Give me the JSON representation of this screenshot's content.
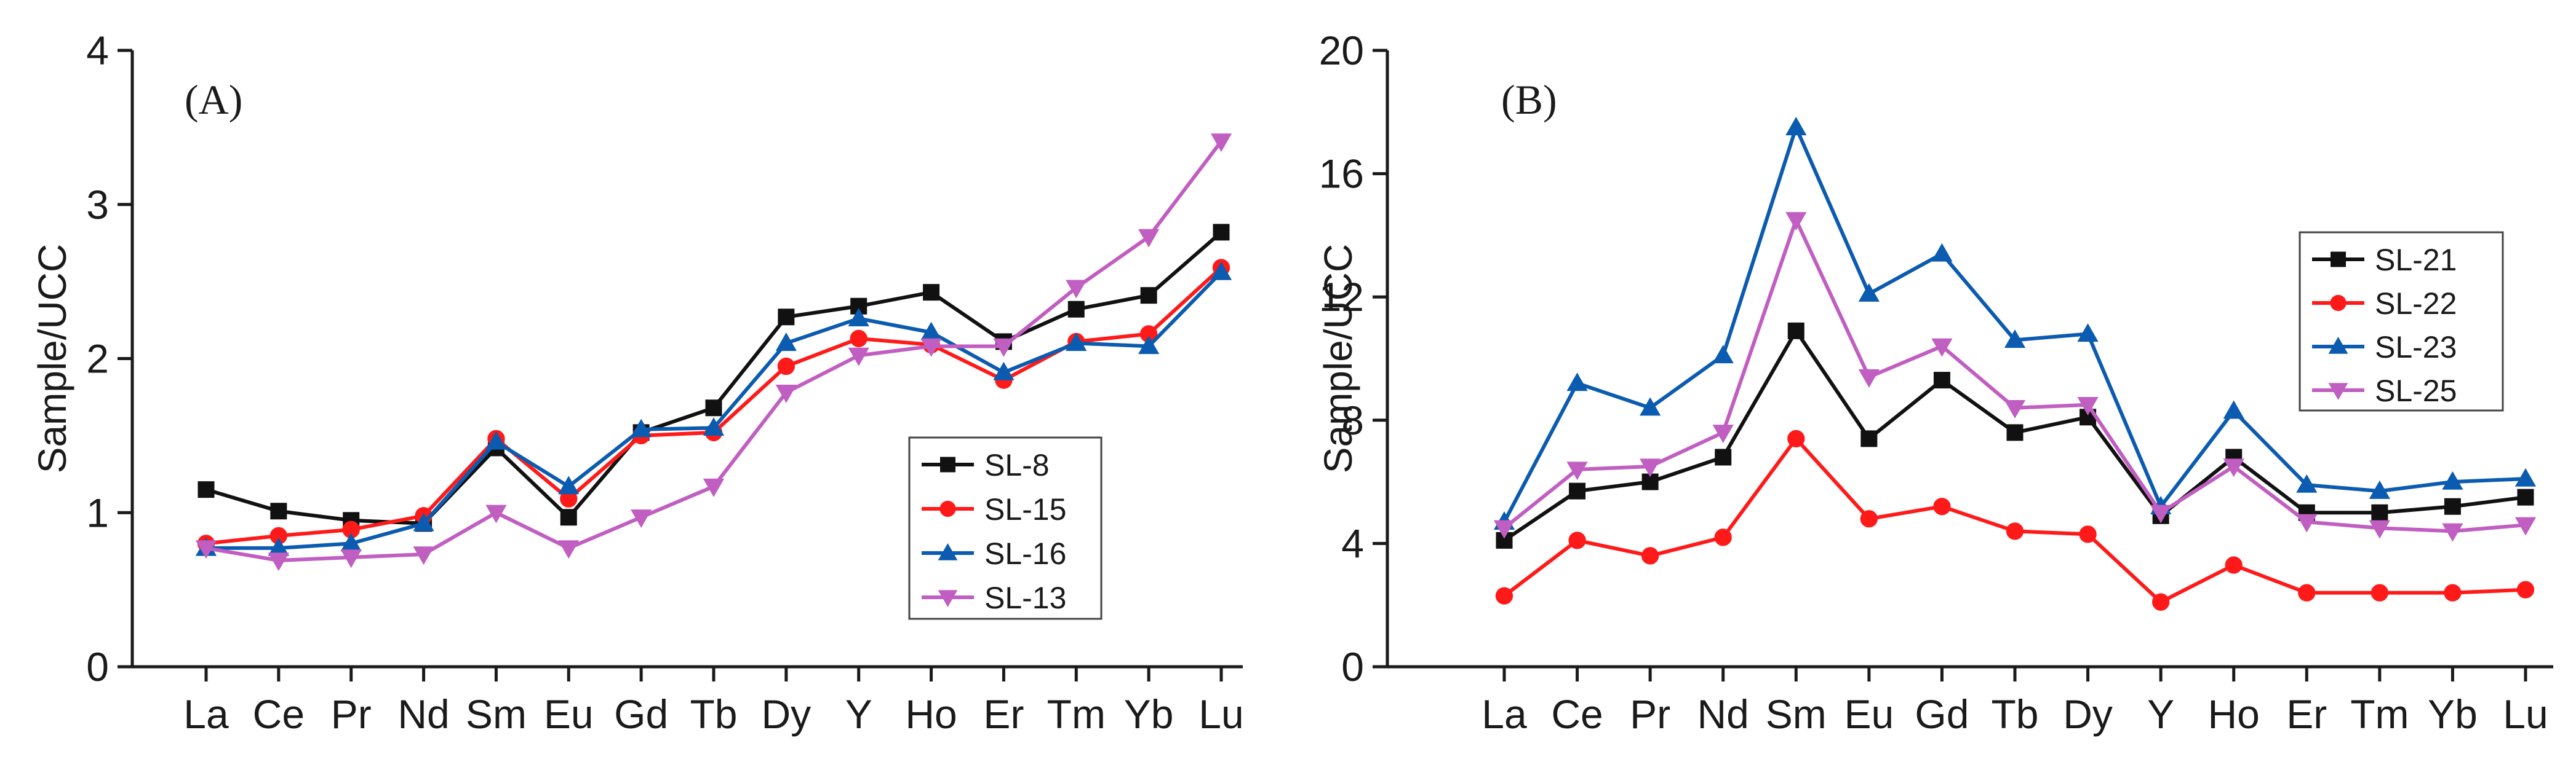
{
  "colors": {
    "black": "#111111",
    "red": "#ff1a1a",
    "blue": "#0b5bb0",
    "magenta": "#c15ec1"
  },
  "chart_data": [
    {
      "type": "line",
      "panel_label": "(A)",
      "ylabel": "Sample/UCC",
      "xlabel": "",
      "categories": [
        "La",
        "Ce",
        "Pr",
        "Nd",
        "Sm",
        "Eu",
        "Gd",
        "Tb",
        "Dy",
        "Y",
        "Ho",
        "Er",
        "Tm",
        "Yb",
        "Lu"
      ],
      "ylim": [
        0,
        4
      ],
      "yticks": [
        0,
        1,
        2,
        3,
        4
      ],
      "ytick_labels": [
        "0",
        "1",
        "2",
        "3",
        "4"
      ],
      "legend_position": "lower-right",
      "series": [
        {
          "name": "SL-8",
          "color": "#111111",
          "marker": "square",
          "values": [
            1.15,
            1.01,
            0.95,
            0.93,
            1.42,
            0.97,
            1.52,
            1.68,
            2.27,
            2.34,
            2.43,
            2.11,
            2.32,
            2.41,
            2.82
          ]
        },
        {
          "name": "SL-15",
          "color": "#ff1a1a",
          "marker": "circle",
          "values": [
            0.8,
            0.85,
            0.89,
            0.98,
            1.48,
            1.09,
            1.5,
            1.52,
            1.95,
            2.13,
            2.09,
            1.86,
            2.11,
            2.16,
            2.59
          ]
        },
        {
          "name": "SL-16",
          "color": "#0b5bb0",
          "marker": "triangle-up",
          "values": [
            0.77,
            0.77,
            0.8,
            0.93,
            1.46,
            1.17,
            1.54,
            1.55,
            2.1,
            2.26,
            2.17,
            1.91,
            2.1,
            2.08,
            2.56
          ]
        },
        {
          "name": "SL-13",
          "color": "#c15ec1",
          "marker": "triangle-down",
          "values": [
            0.77,
            0.69,
            0.71,
            0.73,
            1.0,
            0.77,
            0.97,
            1.17,
            1.78,
            2.02,
            2.08,
            2.08,
            2.46,
            2.79,
            3.41
          ]
        }
      ]
    },
    {
      "type": "line",
      "panel_label": "(B)",
      "ylabel": "Sample/UCC",
      "xlabel": "",
      "categories": [
        "La",
        "Ce",
        "Pr",
        "Nd",
        "Sm",
        "Eu",
        "Gd",
        "Tb",
        "Dy",
        "Y",
        "Ho",
        "Er",
        "Tm",
        "Yb",
        "Lu"
      ],
      "ylim": [
        0,
        20
      ],
      "yticks": [
        0,
        4,
        8,
        12,
        16,
        20
      ],
      "ytick_labels": [
        "0",
        "4",
        "8",
        "12",
        "16",
        "20"
      ],
      "legend_position": "upper-right",
      "series": [
        {
          "name": "SL-21",
          "color": "#111111",
          "marker": "square",
          "values": [
            4.1,
            5.7,
            6.0,
            6.8,
            10.9,
            7.4,
            9.3,
            7.6,
            8.1,
            4.9,
            6.8,
            5.0,
            5.0,
            5.2,
            5.5
          ]
        },
        {
          "name": "SL-22",
          "color": "#ff1a1a",
          "marker": "circle",
          "values": [
            2.3,
            4.1,
            3.6,
            4.2,
            7.4,
            4.8,
            5.2,
            4.4,
            4.3,
            2.1,
            3.3,
            2.4,
            2.4,
            2.4,
            2.5
          ]
        },
        {
          "name": "SL-23",
          "color": "#0b5bb0",
          "marker": "triangle-up",
          "values": [
            4.7,
            9.2,
            8.4,
            10.1,
            17.5,
            12.1,
            13.4,
            10.6,
            10.8,
            5.2,
            8.3,
            5.9,
            5.7,
            6.0,
            6.1
          ]
        },
        {
          "name": "SL-25",
          "color": "#c15ec1",
          "marker": "triangle-down",
          "values": [
            4.5,
            6.4,
            6.5,
            7.6,
            14.5,
            9.4,
            10.4,
            8.4,
            8.5,
            5.0,
            6.5,
            4.7,
            4.5,
            4.4,
            4.6
          ]
        }
      ]
    }
  ]
}
